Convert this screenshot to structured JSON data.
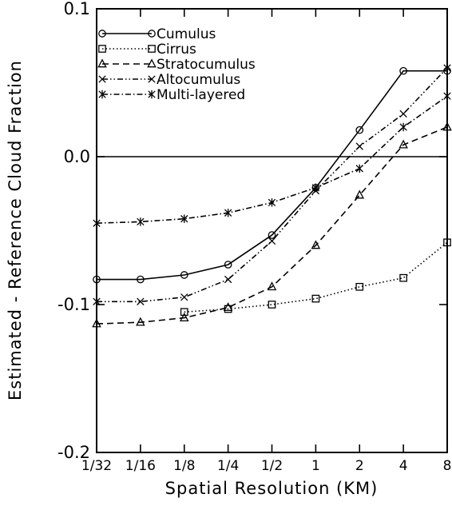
{
  "chart_data": {
    "type": "line",
    "categories": [
      "1/32",
      "1/16",
      "1/8",
      "1/4",
      "1/2",
      "1",
      "2",
      "4",
      "8"
    ],
    "xlabel": "Spatial Resolution (KM)",
    "ylabel": "Estimated - Reference Cloud Fraction",
    "ylim": [
      -0.2,
      0.1
    ],
    "yticks": [
      "0.1",
      "0.0",
      "-0.1",
      "-0.2"
    ],
    "reference_line": 0.0,
    "grid": false,
    "legend_position": "top-left",
    "series": [
      {
        "name": "Cumulus",
        "marker": "circle",
        "dash": "solid",
        "values": [
          -0.083,
          -0.083,
          -0.08,
          -0.073,
          -0.053,
          -0.021,
          0.018,
          0.058,
          0.058
        ]
      },
      {
        "name": "Cirrus",
        "marker": "square",
        "dash": "dotted",
        "values": [
          null,
          null,
          -0.105,
          -0.103,
          -0.1,
          -0.096,
          -0.088,
          -0.082,
          -0.058
        ]
      },
      {
        "name": "Stratocumulus",
        "marker": "triangle",
        "dash": "dashed",
        "values": [
          -0.113,
          -0.112,
          -0.109,
          -0.102,
          -0.088,
          -0.06,
          -0.026,
          0.008,
          0.02
        ]
      },
      {
        "name": "Altocumulus",
        "marker": "x",
        "dash": "dashdotdot",
        "values": [
          -0.098,
          -0.098,
          -0.095,
          -0.083,
          -0.057,
          -0.023,
          0.007,
          0.029,
          0.06
        ]
      },
      {
        "name": "Multi-layered",
        "marker": "asterisk",
        "dash": "dashdot",
        "values": [
          -0.045,
          -0.044,
          -0.042,
          -0.038,
          -0.031,
          -0.021,
          -0.008,
          0.02,
          0.041
        ]
      }
    ]
  }
}
